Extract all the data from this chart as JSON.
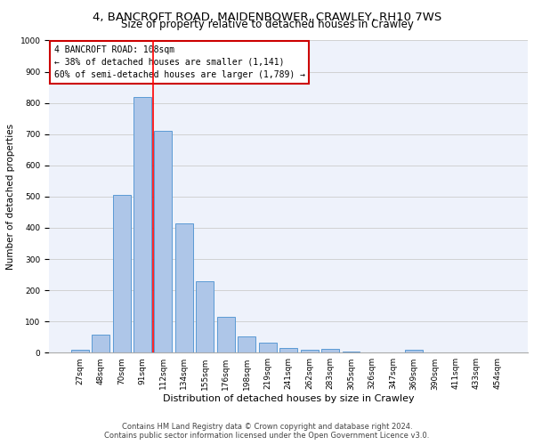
{
  "title1": "4, BANCROFT ROAD, MAIDENBOWER, CRAWLEY, RH10 7WS",
  "title2": "Size of property relative to detached houses in Crawley",
  "xlabel": "Distribution of detached houses by size in Crawley",
  "ylabel": "Number of detached properties",
  "categories": [
    "27sqm",
    "48sqm",
    "70sqm",
    "91sqm",
    "112sqm",
    "134sqm",
    "155sqm",
    "176sqm",
    "198sqm",
    "219sqm",
    "241sqm",
    "262sqm",
    "283sqm",
    "305sqm",
    "326sqm",
    "347sqm",
    "369sqm",
    "390sqm",
    "411sqm",
    "433sqm",
    "454sqm"
  ],
  "values": [
    8,
    58,
    505,
    820,
    710,
    415,
    230,
    115,
    53,
    32,
    15,
    10,
    13,
    4,
    0,
    0,
    10,
    0,
    0,
    0,
    0
  ],
  "bar_color": "#aec6e8",
  "bar_edge_color": "#5b9bd5",
  "annotation_text": "4 BANCROFT ROAD: 108sqm\n← 38% of detached houses are smaller (1,141)\n60% of semi-detached houses are larger (1,789) →",
  "annotation_box_color": "#ffffff",
  "annotation_box_edge_color": "#cc0000",
  "footnote1": "Contains HM Land Registry data © Crown copyright and database right 2024.",
  "footnote2": "Contains public sector information licensed under the Open Government Licence v3.0.",
  "ylim": [
    0,
    1000
  ],
  "yticks": [
    0,
    100,
    200,
    300,
    400,
    500,
    600,
    700,
    800,
    900,
    1000
  ],
  "grid_color": "#cccccc",
  "bg_color": "#eef2fb",
  "title1_fontsize": 9.5,
  "title2_fontsize": 8.5,
  "xlabel_fontsize": 8,
  "ylabel_fontsize": 7.5,
  "tick_fontsize": 6.5,
  "annot_fontsize": 7,
  "footnote_fontsize": 6
}
